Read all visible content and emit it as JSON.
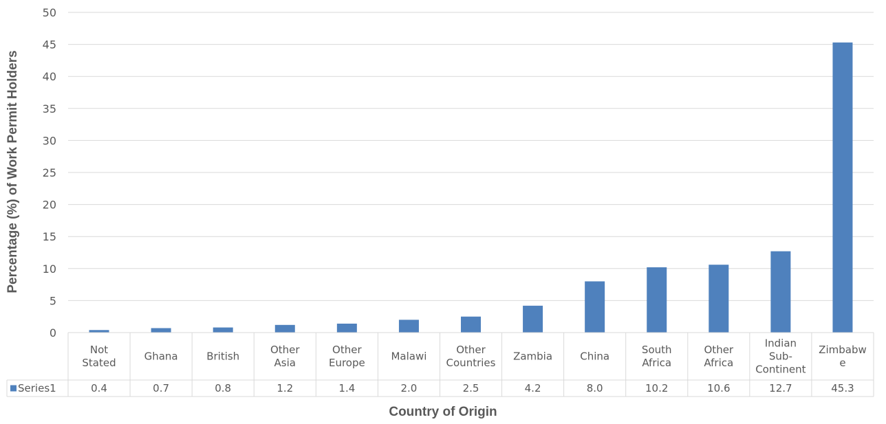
{
  "chart_data": {
    "type": "bar",
    "title": "",
    "xlabel": "Country of Origin",
    "ylabel": "Percentage (%) of Work Permit Holders",
    "ylim": [
      0,
      50
    ],
    "ytick_step": 5,
    "grid": true,
    "legend_placement": "data-table",
    "categories": [
      [
        "Not",
        "Stated"
      ],
      [
        "Ghana"
      ],
      [
        "British"
      ],
      [
        "Other",
        "Asia"
      ],
      [
        "Other",
        "Europe"
      ],
      [
        "Malawi"
      ],
      [
        "Other",
        "Countries"
      ],
      [
        "Zambia"
      ],
      [
        "China"
      ],
      [
        "South",
        "Africa"
      ],
      [
        "Other",
        "Africa"
      ],
      [
        "Indian",
        "Sub-",
        "Continent"
      ],
      [
        "Zimbabw",
        "e"
      ]
    ],
    "series": [
      {
        "name": "Series1",
        "color": "#4f81bd",
        "values": [
          0.4,
          0.7,
          0.8,
          1.2,
          1.4,
          2.0,
          2.5,
          4.2,
          8.0,
          10.2,
          10.6,
          12.7,
          45.3
        ],
        "labels": [
          "0.4",
          "0.7",
          "0.8",
          "1.2",
          "1.4",
          "2.0",
          "2.5",
          "4.2",
          "8.0",
          "10.2",
          "10.6",
          "12.7",
          "45.3"
        ]
      }
    ]
  }
}
